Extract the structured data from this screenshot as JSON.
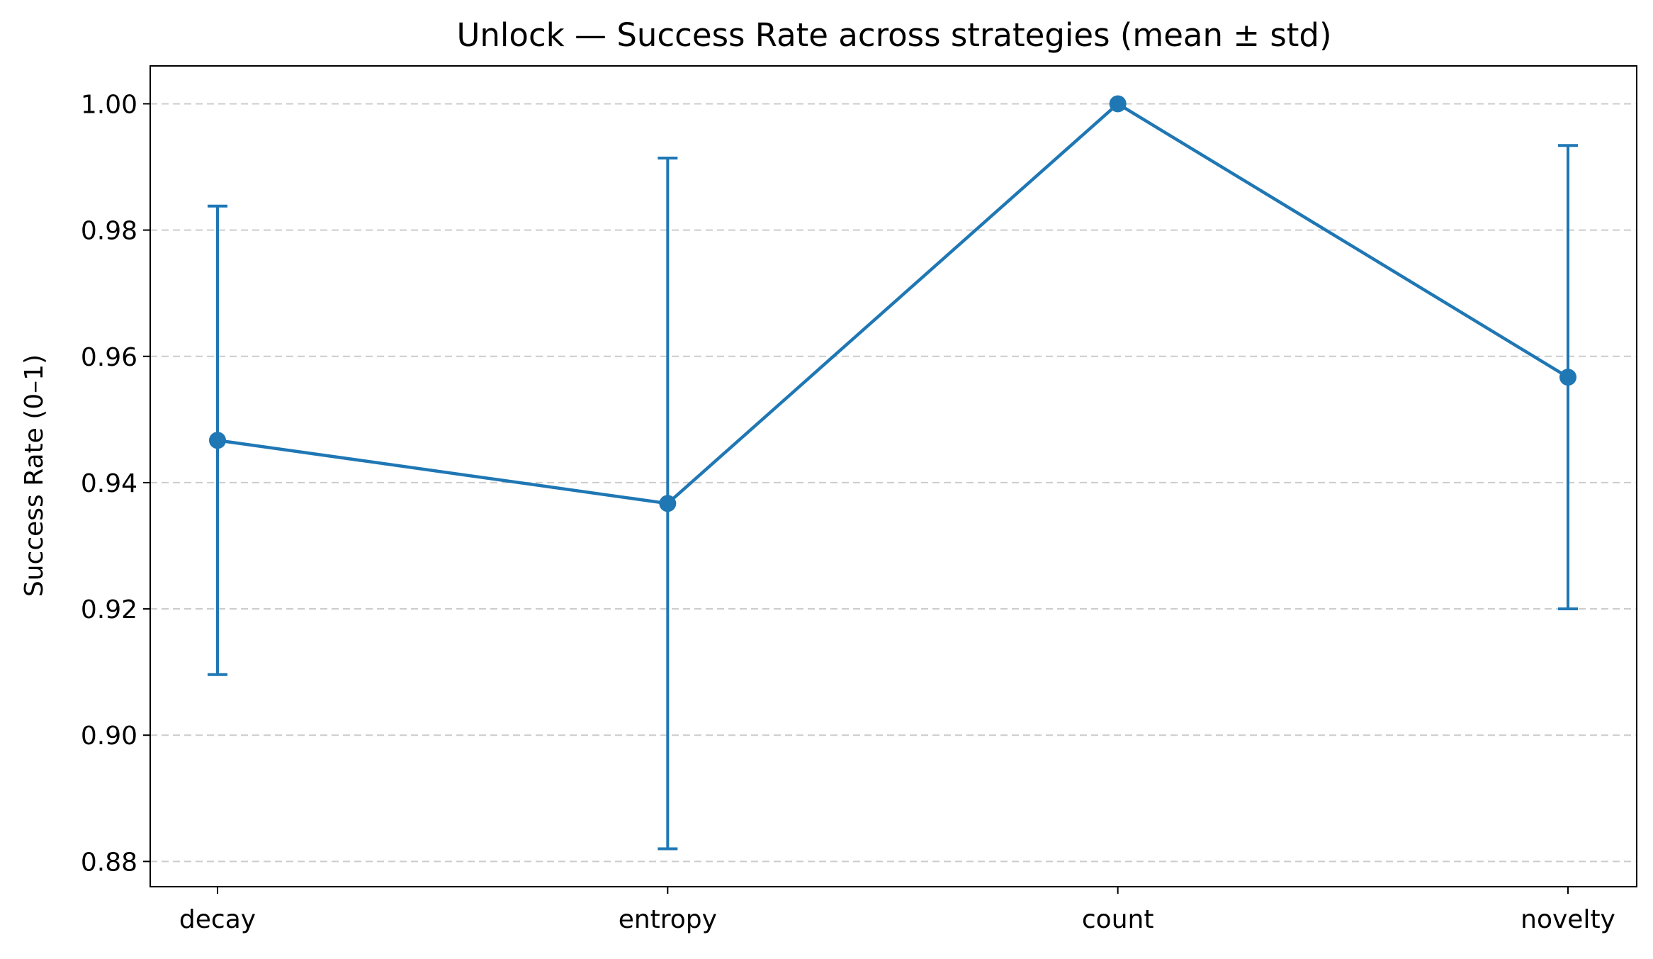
{
  "chart_data": {
    "type": "line",
    "title": "Unlock — Success Rate across strategies (mean ± std)",
    "xlabel": "",
    "ylabel": "Success Rate (0–1)",
    "categories": [
      "decay",
      "entropy",
      "count",
      "novelty"
    ],
    "series": [
      {
        "values": [
          0.9467,
          0.9367,
          1.0,
          0.9567
        ],
        "std": [
          0.0371,
          0.0547,
          0.0,
          0.0367
        ],
        "color": "#1f77b4"
      }
    ],
    "ylim": [
      0.876,
      1.006
    ],
    "yticks": [
      0.88,
      0.9,
      0.92,
      0.94,
      0.96,
      0.98,
      1.0
    ],
    "ytick_labels": [
      "0.88",
      "0.90",
      "0.92",
      "0.94",
      "0.96",
      "0.98",
      "1.00"
    ],
    "grid": "y-dashed"
  }
}
